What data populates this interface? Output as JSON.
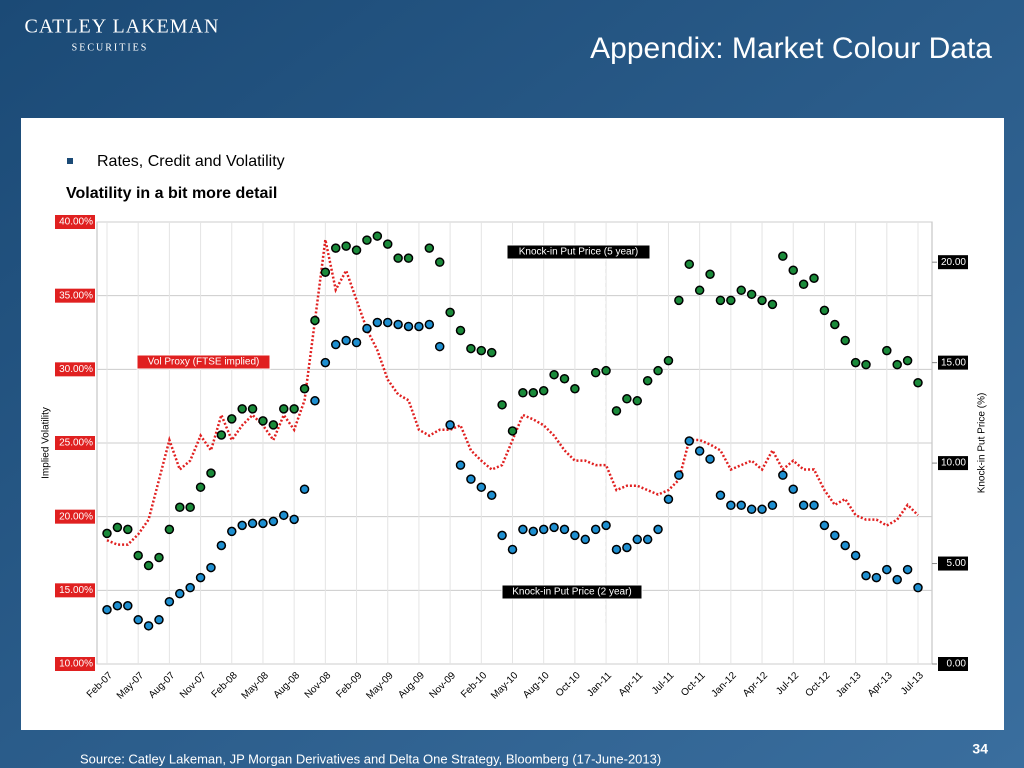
{
  "header": {
    "logo": [
      "CATLEY LAKEMAN",
      "SECURITIES"
    ],
    "title": "Appendix: Market Colour Data"
  },
  "bullet": "Rates, Credit and Volatility",
  "chart_data": {
    "type": "combo",
    "title": "Volatility in a bit more detail",
    "ylabel": "Implied Volatility",
    "y2label": "Knock-in Put Price (%)",
    "categories": [
      "Feb-07",
      null,
      null,
      "May-07",
      null,
      null,
      "Aug-07",
      null,
      null,
      "Nov-07",
      null,
      null,
      "Feb-08",
      null,
      null,
      "May-08",
      null,
      null,
      "Aug-08",
      null,
      null,
      "Nov-08",
      null,
      null,
      "Feb-09",
      null,
      null,
      "May-09",
      null,
      null,
      "Aug-09",
      null,
      null,
      "Nov-09",
      null,
      null,
      "Feb-10",
      null,
      null,
      "May-10",
      null,
      null,
      "Aug-10",
      null,
      null,
      "Oct-10",
      null,
      null,
      "Jan-11",
      null,
      null,
      "Apr-11",
      null,
      null,
      "Jul-11",
      null,
      null,
      "Oct-11",
      null,
      null,
      "Jan-12",
      null,
      null,
      "Apr-12",
      null,
      null,
      "Jul-12",
      null,
      null,
      "Oct-12",
      null,
      null,
      "Jan-13",
      null,
      null,
      "Apr-13",
      null,
      null,
      "Jul-13"
    ],
    "ylim": [
      10,
      40
    ],
    "yticks": [
      {
        "value": 10,
        "label": "10.00%"
      },
      {
        "value": 15,
        "label": "15.00%"
      },
      {
        "value": 20,
        "label": "20.00%"
      },
      {
        "value": 25,
        "label": "25.00%"
      },
      {
        "value": 30,
        "label": "30.00%"
      },
      {
        "value": 35,
        "label": "35.00%"
      },
      {
        "value": 40,
        "label": "40.00%"
      }
    ],
    "y2lim": [
      0,
      22
    ],
    "y2ticks": [
      {
        "value": 0,
        "label": "0.00"
      },
      {
        "value": 5,
        "label": "5.00"
      },
      {
        "value": 10,
        "label": "10.00"
      },
      {
        "value": 15,
        "label": "15.00"
      },
      {
        "value": 20,
        "label": "20.00"
      }
    ],
    "grid": true,
    "series": [
      {
        "name": "Vol Proxy (FTSE implied)",
        "type": "line",
        "color": "#e02020",
        "values": [
          18.4,
          18.1,
          18.1,
          18.8,
          19.8,
          22.5,
          25.2,
          23.2,
          23.8,
          25.5,
          24.5,
          26.9,
          25.2,
          26.2,
          26.9,
          26.2,
          25.2,
          26.9,
          25.9,
          27.9,
          33.3,
          38.8,
          35.4,
          36.7,
          34.7,
          32.7,
          31.3,
          29.3,
          28.3,
          27.9,
          25.9,
          25.5,
          25.9,
          25.9,
          26.2,
          24.5,
          23.8,
          23.2,
          23.5,
          25.2,
          26.9,
          26.6,
          26.2,
          25.5,
          24.5,
          23.8,
          23.8,
          23.5,
          23.5,
          21.8,
          22.1,
          22.1,
          21.8,
          21.5,
          21.8,
          22.5,
          25.2,
          25.2,
          24.9,
          24.5,
          23.2,
          23.5,
          23.8,
          23.2,
          24.5,
          23.2,
          23.8,
          23.2,
          23.2,
          21.8,
          20.8,
          21.2,
          20.1,
          19.8,
          19.8,
          19.4,
          19.8,
          20.8,
          20.1
        ]
      },
      {
        "name": "Knock-in Put Price (5 year)",
        "type": "scatter",
        "axis": "y2",
        "color": "#1a8a3a",
        "values": [
          6.5,
          6.8,
          6.7,
          5.4,
          4.9,
          5.3,
          6.7,
          7.8,
          7.8,
          8.8,
          9.5,
          11.4,
          12.2,
          12.7,
          12.7,
          12.1,
          11.9,
          12.7,
          12.7,
          13.7,
          17.1,
          19.5,
          20.7,
          20.8,
          20.6,
          21.1,
          21.3,
          20.9,
          20.2,
          20.2,
          null,
          20.7,
          20.0,
          17.5,
          16.6,
          15.7,
          15.6,
          15.5,
          12.9,
          11.6,
          13.5,
          13.5,
          13.6,
          14.4,
          14.2,
          13.7,
          null,
          14.5,
          14.6,
          12.6,
          13.2,
          13.1,
          14.1,
          14.6,
          15.1,
          18.1,
          19.9,
          18.6,
          19.4,
          18.1,
          18.1,
          18.6,
          18.4,
          18.1,
          17.9,
          20.3,
          19.6,
          18.9,
          19.2,
          17.6,
          16.9,
          16.1,
          15.0,
          14.9,
          null,
          15.6,
          14.9,
          15.1,
          14.0
        ]
      },
      {
        "name": "Knock-in Put Price (2 year)",
        "type": "scatter",
        "axis": "y2",
        "color": "#1e8fd0",
        "values": [
          2.7,
          2.9,
          2.9,
          2.2,
          1.9,
          2.2,
          3.1,
          3.5,
          3.8,
          4.3,
          4.8,
          5.9,
          6.6,
          6.9,
          7.0,
          7.0,
          7.1,
          7.4,
          7.2,
          8.7,
          13.1,
          15.0,
          15.9,
          16.1,
          16.0,
          16.7,
          17.0,
          17.0,
          16.9,
          16.8,
          16.8,
          16.9,
          15.8,
          11.9,
          9.9,
          9.2,
          8.8,
          8.4,
          6.4,
          5.7,
          6.7,
          6.6,
          6.7,
          6.8,
          6.7,
          6.4,
          6.2,
          6.7,
          6.9,
          5.7,
          5.8,
          6.2,
          6.2,
          6.7,
          8.2,
          9.4,
          11.1,
          10.6,
          10.2,
          8.4,
          7.9,
          7.9,
          7.7,
          7.7,
          7.9,
          9.4,
          8.7,
          7.9,
          7.9,
          6.9,
          6.4,
          5.9,
          5.4,
          4.4,
          4.3,
          4.7,
          4.2,
          4.7,
          3.8
        ]
      }
    ]
  },
  "footer": {
    "source": "Source: Catley Lakeman, JP Morgan Derivatives and Delta One Strategy, Bloomberg (17-June-2013)",
    "page": "34"
  }
}
